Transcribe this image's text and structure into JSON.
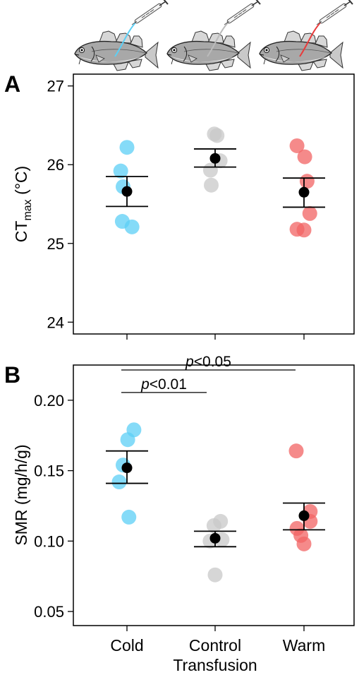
{
  "chart_data": [
    {
      "type": "scatter",
      "panel": "A",
      "categories": [
        "Cold",
        "Control",
        "Warm"
      ],
      "ylabel_main": "CT",
      "ylabel_sub": "max",
      "ylabel_unit": " (°C)",
      "ylim": [
        23.85,
        27.15
      ],
      "yticks": [
        24,
        25,
        26,
        27
      ],
      "grid": false,
      "legend": "none",
      "series": [
        {
          "category": "Cold",
          "color": "#5ccff5",
          "points": [
            [
              0.0,
              26.22
            ],
            [
              -0.16,
              25.92
            ],
            [
              -0.1,
              25.72
            ],
            [
              -0.12,
              25.28
            ],
            [
              0.13,
              25.21
            ]
          ],
          "mean": 25.66,
          "err_low": 25.47,
          "err_high": 25.85
        },
        {
          "category": "Control",
          "color": "#c8c8c8",
          "points": [
            [
              -0.02,
              26.39
            ],
            [
              0.05,
              26.37
            ],
            [
              -0.12,
              25.93
            ],
            [
              0.13,
              26.05
            ],
            [
              -0.1,
              25.74
            ]
          ],
          "mean": 26.08,
          "err_low": 25.97,
          "err_high": 26.2
        },
        {
          "category": "Warm",
          "color": "#f26363",
          "points": [
            [
              -0.18,
              26.24
            ],
            [
              0.02,
              26.1
            ],
            [
              0.08,
              25.79
            ],
            [
              0.15,
              25.38
            ],
            [
              -0.18,
              25.18
            ],
            [
              0.0,
              25.17
            ]
          ],
          "mean": 25.65,
          "err_low": 25.46,
          "err_high": 25.83
        }
      ]
    },
    {
      "type": "scatter",
      "panel": "B",
      "categories": [
        "Cold",
        "Control",
        "Warm"
      ],
      "ylabel": "SMR (mg/h/g)",
      "xlabel": "Transfusion",
      "ylim": [
        0.04,
        0.225
      ],
      "yticks": [
        "0.05",
        "0.10",
        "0.15",
        "0.20"
      ],
      "grid": false,
      "legend": "none",
      "series": [
        {
          "category": "Cold",
          "color": "#5ccff5",
          "points": [
            [
              0.18,
              0.179
            ],
            [
              0.02,
              0.172
            ],
            [
              -0.1,
              0.154
            ],
            [
              -0.2,
              0.142
            ],
            [
              0.05,
              0.117
            ]
          ],
          "mean": 0.152,
          "err_low": 0.141,
          "err_high": 0.164
        },
        {
          "category": "Control",
          "color": "#c8c8c8",
          "points": [
            [
              0.14,
              0.114
            ],
            [
              -0.03,
              0.111
            ],
            [
              0.18,
              0.101
            ],
            [
              -0.13,
              0.1
            ],
            [
              0.0,
              0.076
            ]
          ],
          "mean": 0.102,
          "err_low": 0.096,
          "err_high": 0.107
        },
        {
          "category": "Warm",
          "color": "#f26363",
          "points": [
            [
              -0.2,
              0.164
            ],
            [
              0.16,
              0.121
            ],
            [
              -0.18,
              0.109
            ],
            [
              0.16,
              0.114
            ],
            [
              -0.08,
              0.104
            ],
            [
              0.0,
              0.098
            ]
          ],
          "mean": 0.118,
          "err_low": 0.108,
          "err_high": 0.127
        }
      ],
      "annotations": [
        {
          "italic": "p",
          "rest": "<0.05",
          "from": 0,
          "to": 2,
          "y": 0.2215
        },
        {
          "italic": "p",
          "rest": "<0.01",
          "from": 0,
          "to": 1,
          "y": 0.2055
        }
      ]
    }
  ],
  "illustrations": [
    {
      "name": "cold",
      "tube_color": "#5ccff5"
    },
    {
      "name": "control",
      "tube_color": "#bbbbbb"
    },
    {
      "name": "warm",
      "tube_color": "#e83b3b"
    }
  ]
}
